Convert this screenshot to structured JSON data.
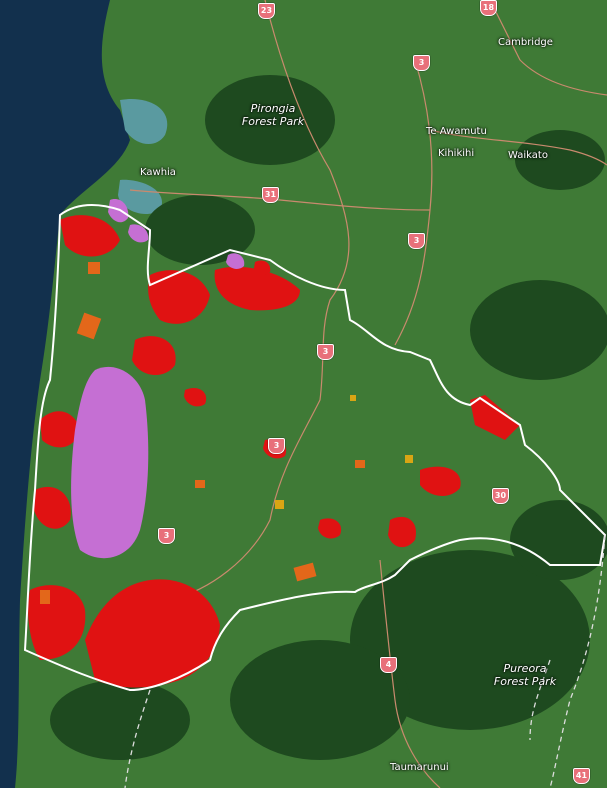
{
  "colors": {
    "ocean": "#12304d",
    "land": "#3f7a36",
    "forest": "#1e4a1f",
    "boundary": "#ffffff",
    "red_zone": "#e01212",
    "purple_zone": "#c56fd3",
    "orange_zone": "#e3671a",
    "gold_zone": "#d9a514",
    "shield": "#e8707a"
  },
  "places": {
    "cambridge": "Cambridge",
    "te_awamutu": "Te Awamutu",
    "kihikihi": "Kihikihi",
    "waikato": "Waikato",
    "kawhia": "Kawhia",
    "taumarunui": "Taumarunui"
  },
  "parks": {
    "pirongia": "Pirongia\nForest Park",
    "pureora": "Pureora\nForest Park"
  },
  "routes": {
    "r23": "23",
    "r18": "18",
    "r3a": "3",
    "r31": "31",
    "r3b": "3",
    "r3c": "3",
    "r3d": "3",
    "r30": "30",
    "r3e": "3",
    "r4": "4",
    "r41": "41"
  }
}
